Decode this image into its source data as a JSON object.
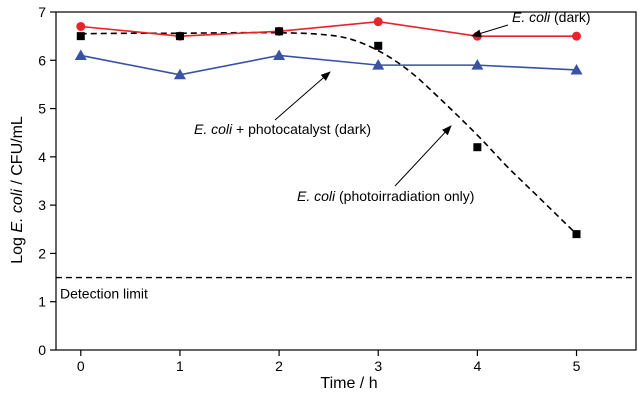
{
  "chart_data": {
    "type": "line",
    "xlabel": "Time / h",
    "ylabel": {
      "prefix": "Log ",
      "italic": "E. coli",
      "suffix": " / CFU/mL"
    },
    "xlim": [
      -0.25,
      5.6
    ],
    "ylim": [
      0,
      7
    ],
    "x_ticks": [
      0,
      1,
      2,
      3,
      4,
      5
    ],
    "y_ticks": [
      0,
      1,
      2,
      3,
      4,
      5,
      6,
      7
    ],
    "grid": false,
    "series": [
      {
        "key": "dark",
        "color": "#e8232a",
        "marker": "circle",
        "line": "solid",
        "x": [
          0,
          1,
          2,
          3,
          4,
          5
        ],
        "y": [
          6.7,
          6.5,
          6.6,
          6.8,
          6.5,
          6.5
        ]
      },
      {
        "key": "photocatalyst",
        "color": "#3a52a4",
        "marker": "triangle",
        "line": "solid",
        "x": [
          0,
          1,
          2,
          3,
          4,
          5
        ],
        "y": [
          6.1,
          5.7,
          6.1,
          5.9,
          5.9,
          5.8
        ]
      },
      {
        "key": "photoirradiation",
        "color": "#000000",
        "marker": "square",
        "line": "none",
        "x": [
          0,
          1,
          2,
          3,
          4,
          5
        ],
        "y": [
          6.5,
          6.5,
          6.6,
          6.3,
          4.2,
          2.4
        ],
        "fit_x": [
          0,
          0.5,
          1,
          1.5,
          2,
          2.4,
          2.7,
          3,
          3.3,
          3.6,
          4,
          4.3,
          4.6,
          5
        ],
        "fit_y": [
          6.55,
          6.56,
          6.56,
          6.57,
          6.57,
          6.54,
          6.45,
          6.2,
          5.8,
          5.25,
          4.45,
          3.8,
          3.2,
          2.4
        ]
      }
    ],
    "detection_limit": {
      "value": 1.5,
      "label": "Detection limit"
    },
    "annotations": [
      {
        "key": "dark",
        "italic": "E. coli",
        "rest": " (dark)"
      },
      {
        "key": "photocatalyst",
        "italic": "E. coli",
        "rest": " + photocatalyst (dark)"
      },
      {
        "key": "photoirradiation",
        "italic": "E. coli",
        "rest": " (photoirradiation only)"
      }
    ]
  }
}
